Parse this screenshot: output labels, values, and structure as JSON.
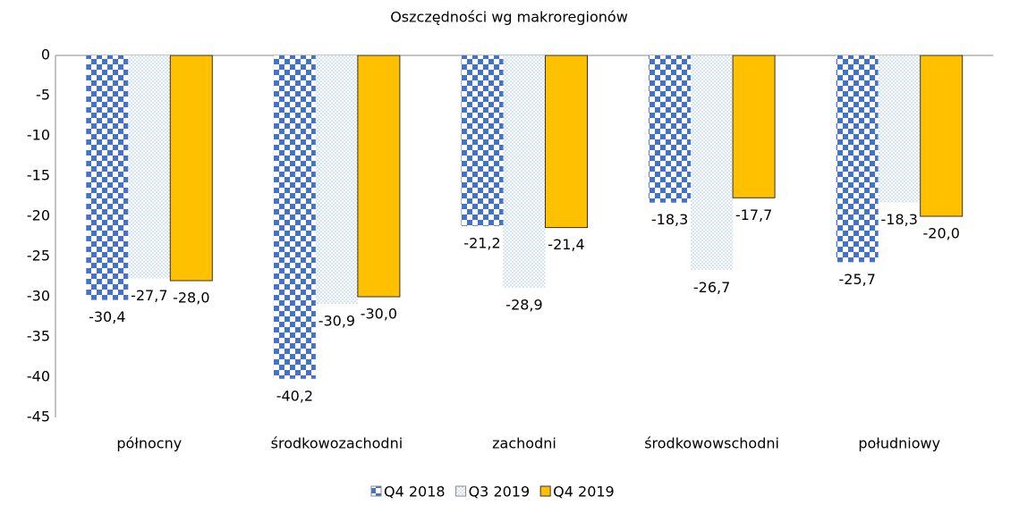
{
  "chart_data": {
    "type": "bar",
    "title": "Oszczędności wg makroregionów",
    "categories": [
      "północny",
      "środkowozachodni",
      "zachodni",
      "środkowowschodni",
      "południowy"
    ],
    "series": [
      {
        "name": "Q4 2018",
        "color": "#4472c4",
        "values": [
          -30.4,
          -40.2,
          -21.2,
          -18.3,
          -25.7
        ],
        "value_labels": [
          "-30,4",
          "-40,2",
          "-21,2",
          "-18,3",
          "-25,7"
        ]
      },
      {
        "name": "Q3 2019",
        "color": "#9dc3e6",
        "values": [
          -27.7,
          -30.9,
          -28.9,
          -26.7,
          -18.3
        ],
        "value_labels": [
          "-27,7",
          "-30,9",
          "-28,9",
          "-26,7",
          "-18,3"
        ]
      },
      {
        "name": "Q4 2019",
        "color": "#ffc000",
        "values": [
          -28.0,
          -30.0,
          -21.4,
          -17.7,
          -20.0
        ],
        "value_labels": [
          "-28,0",
          "-30,0",
          "-21,4",
          "-17,7",
          "-20,0"
        ]
      }
    ],
    "ylim": [
      -45,
      0
    ],
    "yticks": [
      0,
      -5,
      -10,
      -15,
      -20,
      -25,
      -30,
      -35,
      -40,
      -45
    ],
    "grid": false
  }
}
